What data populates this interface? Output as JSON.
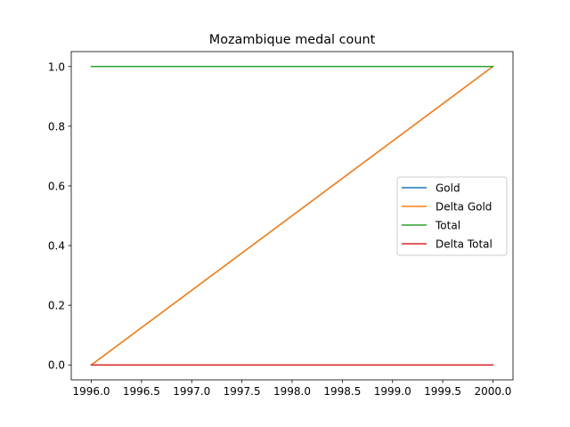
{
  "chart_data": {
    "type": "line",
    "title": "Mozambique medal count",
    "xlabel": "",
    "ylabel": "",
    "xlim": [
      1995.8,
      2000.2
    ],
    "ylim": [
      -0.05,
      1.05
    ],
    "xticks": [
      1996.0,
      1996.5,
      1997.0,
      1997.5,
      1998.0,
      1998.5,
      1999.0,
      1999.5,
      2000.0
    ],
    "xtick_labels": [
      "1996.0",
      "1996.5",
      "1997.0",
      "1997.5",
      "1998.0",
      "1998.5",
      "1999.0",
      "1999.5",
      "2000.0"
    ],
    "yticks": [
      0.0,
      0.2,
      0.4,
      0.6,
      0.8,
      1.0
    ],
    "ytick_labels": [
      "0.0",
      "0.2",
      "0.4",
      "0.6",
      "0.8",
      "1.0"
    ],
    "grid": false,
    "legend_position": "center-right",
    "series": [
      {
        "name": "Gold",
        "color": "#1f77b4",
        "x": [
          1996,
          2000
        ],
        "y": [
          0,
          1
        ]
      },
      {
        "name": "Delta Gold",
        "color": "#ff7f0e",
        "x": [
          1996,
          2000
        ],
        "y": [
          0,
          1
        ]
      },
      {
        "name": "Total",
        "color": "#2ca02c",
        "x": [
          1996,
          2000
        ],
        "y": [
          1,
          1
        ]
      },
      {
        "name": "Delta Total",
        "color": "#d62728",
        "x": [
          1996,
          2000
        ],
        "y": [
          0,
          0
        ]
      }
    ]
  }
}
